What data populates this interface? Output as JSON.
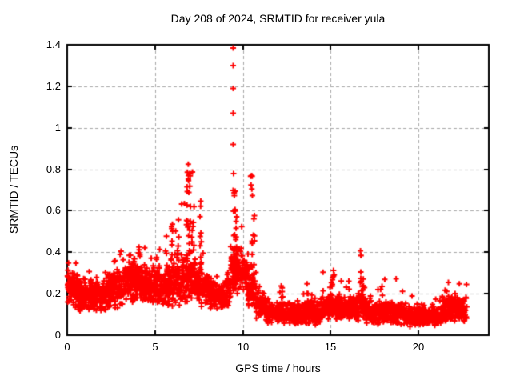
{
  "window": {
    "background": "#ffffff"
  },
  "chart_data": {
    "type": "scatter",
    "title": "Day 208 of 2024, SRMTID for receiver yula",
    "xlabel": "GPS time / hours",
    "ylabel": "SRMTID / TECUs",
    "xlim": [
      0,
      24
    ],
    "ylim": [
      0,
      1.4
    ],
    "xticks": [
      0,
      5,
      10,
      15,
      20
    ],
    "xtick_labels": [
      "0",
      "5",
      "10",
      "15",
      "20"
    ],
    "yticks": [
      0,
      0.2,
      0.4,
      0.6,
      0.8,
      1,
      1.2,
      1.4
    ],
    "ytick_labels": [
      "0",
      "0.2",
      "0.4",
      "0.6",
      "0.8",
      "1",
      "1.2",
      "1.4"
    ],
    "grid": true,
    "legend": "none",
    "marker": {
      "shape": "plus",
      "color": "#ff0000",
      "size": 7,
      "stroke": 2
    },
    "colors": {
      "marker": "#ff0000",
      "grid": "#a8a8a8",
      "axis": "#000000",
      "text": "#000000",
      "background": "#ffffff"
    },
    "series_name": "SRMTID",
    "seed": 208024,
    "band_segments": [
      {
        "x0": 0.0,
        "x1": 0.6,
        "n": 85,
        "base": 0.23,
        "amp": 0.1,
        "min": 0.12,
        "max": 0.4
      },
      {
        "x0": 0.6,
        "x1": 2.2,
        "n": 230,
        "base": 0.19,
        "amp": 0.09,
        "min": 0.09,
        "max": 0.33
      },
      {
        "x0": 2.2,
        "x1": 3.2,
        "n": 150,
        "base": 0.22,
        "amp": 0.1,
        "min": 0.1,
        "max": 0.43
      },
      {
        "x0": 3.2,
        "x1": 4.6,
        "n": 210,
        "base": 0.26,
        "amp": 0.11,
        "min": 0.11,
        "max": 0.46
      },
      {
        "x0": 4.6,
        "x1": 5.6,
        "n": 150,
        "base": 0.24,
        "amp": 0.1,
        "min": 0.12,
        "max": 0.45
      },
      {
        "x0": 5.6,
        "x1": 6.5,
        "n": 130,
        "base": 0.25,
        "amp": 0.12,
        "min": 0.1,
        "max": 0.55
      },
      {
        "x0": 6.5,
        "x1": 7.3,
        "n": 120,
        "base": 0.28,
        "amp": 0.13,
        "min": 0.12,
        "max": 0.85
      },
      {
        "x0": 7.3,
        "x1": 8.1,
        "n": 110,
        "base": 0.23,
        "amp": 0.1,
        "min": 0.12,
        "max": 0.68
      },
      {
        "x0": 8.1,
        "x1": 9.3,
        "n": 160,
        "base": 0.2,
        "amp": 0.08,
        "min": 0.1,
        "max": 0.35
      },
      {
        "x0": 9.3,
        "x1": 10.3,
        "n": 150,
        "base": 0.31,
        "amp": 0.12,
        "min": 0.12,
        "max": 0.55
      },
      {
        "x0": 10.3,
        "x1": 10.75,
        "n": 60,
        "base": 0.24,
        "amp": 0.12,
        "min": 0.1,
        "max": 0.8
      },
      {
        "x0": 10.75,
        "x1": 11.3,
        "n": 75,
        "base": 0.15,
        "amp": 0.07,
        "min": 0.06,
        "max": 0.28
      },
      {
        "x0": 11.3,
        "x1": 14.4,
        "n": 400,
        "base": 0.11,
        "amp": 0.06,
        "min": 0.04,
        "max": 0.22
      },
      {
        "x0": 14.4,
        "x1": 15.6,
        "n": 160,
        "base": 0.14,
        "amp": 0.07,
        "min": 0.05,
        "max": 0.33
      },
      {
        "x0": 15.6,
        "x1": 16.5,
        "n": 115,
        "base": 0.13,
        "amp": 0.06,
        "min": 0.05,
        "max": 0.28
      },
      {
        "x0": 16.5,
        "x1": 17.0,
        "n": 65,
        "base": 0.16,
        "amp": 0.09,
        "min": 0.06,
        "max": 0.44
      },
      {
        "x0": 17.0,
        "x1": 19.3,
        "n": 290,
        "base": 0.11,
        "amp": 0.06,
        "min": 0.04,
        "max": 0.3
      },
      {
        "x0": 19.3,
        "x1": 21.3,
        "n": 250,
        "base": 0.09,
        "amp": 0.05,
        "min": 0.03,
        "max": 0.2
      },
      {
        "x0": 21.3,
        "x1": 22.75,
        "n": 190,
        "base": 0.13,
        "amp": 0.07,
        "min": 0.05,
        "max": 0.27
      }
    ],
    "spike_columns": [
      {
        "x": 3.8,
        "n": 6,
        "y0": 0.25,
        "y1": 0.45
      },
      {
        "x": 4.1,
        "n": 5,
        "y0": 0.25,
        "y1": 0.43
      },
      {
        "x": 5.95,
        "n": 8,
        "y0": 0.3,
        "y1": 0.55
      },
      {
        "x": 6.3,
        "n": 8,
        "y0": 0.3,
        "y1": 0.6
      },
      {
        "x": 6.85,
        "n": 16,
        "y0": 0.3,
        "y1": 0.85
      },
      {
        "x": 7.0,
        "n": 12,
        "y0": 0.3,
        "y1": 0.8
      },
      {
        "x": 7.15,
        "n": 8,
        "y0": 0.32,
        "y1": 0.62
      },
      {
        "x": 7.6,
        "n": 12,
        "y0": 0.25,
        "y1": 0.68
      },
      {
        "x": 9.5,
        "n": 18,
        "y0": 0.3,
        "y1": 0.78
      },
      {
        "x": 9.62,
        "n": 12,
        "y0": 0.28,
        "y1": 0.66
      },
      {
        "x": 10.5,
        "n": 15,
        "y0": 0.18,
        "y1": 0.8
      },
      {
        "x": 10.62,
        "n": 8,
        "y0": 0.2,
        "y1": 0.55
      },
      {
        "x": 12.2,
        "n": 5,
        "y0": 0.15,
        "y1": 0.28
      },
      {
        "x": 13.7,
        "n": 6,
        "y0": 0.14,
        "y1": 0.26
      },
      {
        "x": 15.1,
        "n": 6,
        "y0": 0.18,
        "y1": 0.33
      },
      {
        "x": 16.7,
        "n": 9,
        "y0": 0.18,
        "y1": 0.44
      }
    ],
    "outlier_points": [
      [
        9.45,
        1.385
      ],
      [
        9.45,
        1.3
      ],
      [
        9.45,
        1.19
      ],
      [
        9.45,
        1.07
      ],
      [
        9.45,
        0.92
      ]
    ]
  }
}
